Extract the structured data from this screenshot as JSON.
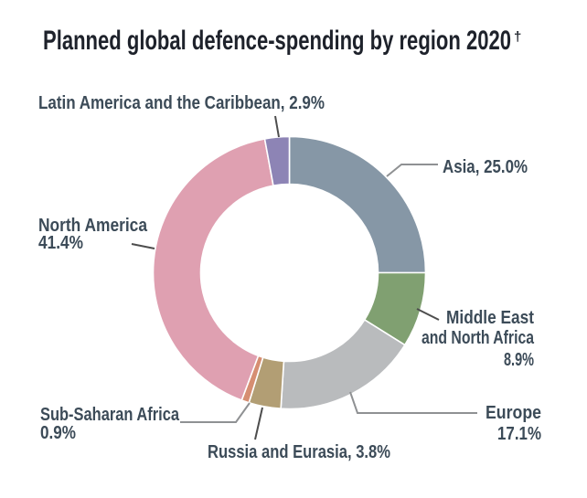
{
  "title": {
    "text": "Planned global defence-spending by region 2020",
    "dagger": "†"
  },
  "colors": {
    "background": "#ffffff",
    "title_text": "#1e222b",
    "label_text": "#3c4b58",
    "leader_dark": "#4d4d4d",
    "leader_light": "#8f9193",
    "separator": "#ffffff"
  },
  "chart_data": {
    "type": "pie",
    "subtype": "donut",
    "title": "Planned global defence-spending by region 2020†",
    "unit": "%",
    "start_angle_deg": 0,
    "direction": "clockwise",
    "total": 100.0,
    "segments": [
      {
        "label": "Asia",
        "value": 25.0,
        "color": "#8697a6"
      },
      {
        "label": "Middle East and North Africa",
        "value": 8.9,
        "color": "#80a071"
      },
      {
        "label": "Europe",
        "value": 17.1,
        "color": "#b9bbbd"
      },
      {
        "label": "Russia and Eurasia",
        "value": 3.8,
        "color": "#b29e74"
      },
      {
        "label": "Sub-Saharan Africa",
        "value": 0.9,
        "color": "#d68e72"
      },
      {
        "label": "North America",
        "value": 41.4,
        "color": "#dfa0b1"
      },
      {
        "label": "Latin America and the Caribbean",
        "value": 2.9,
        "color": "#8d84b5"
      }
    ]
  },
  "labels": {
    "latin_america": "Latin America and the Caribbean, 2.9%",
    "asia": "Asia, 25.0%",
    "mena_line1": "Middle East",
    "mena_line2": "and North Africa",
    "mena_line3": "8.9%",
    "europe_line1": "Europe",
    "europe_line2": "17.1%",
    "russia": "Russia and Eurasia, 3.8%",
    "subsaharan_line1": "Sub-Saharan Africa",
    "subsaharan_line2": "0.9%",
    "north_america_line1": "North America",
    "north_america_line2": "41.4%"
  }
}
